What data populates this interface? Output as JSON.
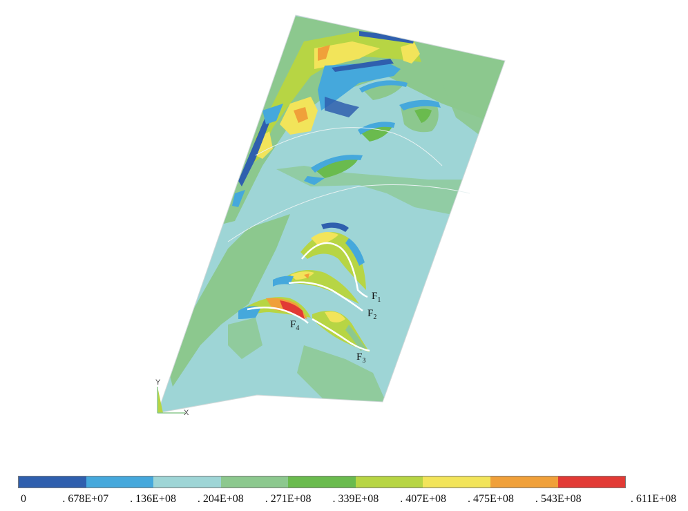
{
  "colors": {
    "background": "#ffffff",
    "fault_line": "#ffffff",
    "outline": "#cfd8d8"
  },
  "legend": {
    "colors": [
      "#2f5fae",
      "#45a8dc",
      "#9ed5d6",
      "#8cc88e",
      "#6abb4e",
      "#b7d544",
      "#f2e45a",
      "#f0a03a",
      "#e23a35"
    ],
    "ticks": [
      "0",
      ". 678E+07",
      ". 136E+08",
      ". 204E+08",
      ". 271E+08",
      ". 339E+08",
      ". 407E+08",
      ". 475E+08",
      ". 543E+08",
      ". 611E+08"
    ]
  },
  "faults": [
    {
      "main": "F",
      "sub": "1"
    },
    {
      "main": "F",
      "sub": "2"
    },
    {
      "main": "F",
      "sub": "3"
    },
    {
      "main": "F",
      "sub": "4"
    }
  ],
  "axis_triad": {
    "y": "Y",
    "x": "X"
  }
}
